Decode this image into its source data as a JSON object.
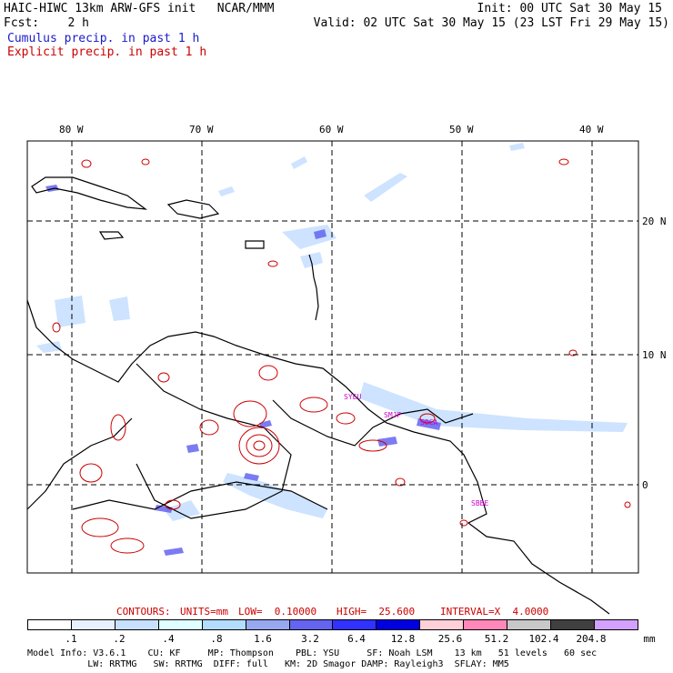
{
  "header": {
    "model_title": "HAIC-HIWC 13km ARW-GFS init   NCAR/MMM",
    "init": "Init: 00 UTC Sat 30 May 15",
    "fcst": "Fcst:    2 h",
    "valid": "Valid: 02 UTC Sat 30 May 15 (23 LST Fri 29 May 15)",
    "cumulus_label": "Cumulus precip. in past 1 h",
    "explicit_label": "Explicit precip. in past 1 h"
  },
  "colors": {
    "cumulus": "#1a1acc",
    "explicit": "#cc0000",
    "coast": "#000000",
    "grid": "#000000",
    "stations": "#cc00cc"
  },
  "map": {
    "lon_labels": [
      "80 W",
      "70 W",
      "60 W",
      "50 W",
      "40 W"
    ],
    "lat_labels": [
      "20 N",
      "10 N",
      "0"
    ],
    "stations": [
      "SYEU",
      "SMJP",
      "SOCA",
      "SBBE"
    ]
  },
  "contours_info": {
    "contours": "CONTOURS:",
    "units": "UNITS=mm",
    "low": "LOW=  0.10000",
    "high": "HIGH=  25.600",
    "interval": "INTERVAL=X  4.0000"
  },
  "legend": {
    "labels": [
      ".1",
      ".2",
      ".4",
      ".8",
      "1.6",
      "3.2",
      "6.4",
      "12.8",
      "25.6",
      "51.2",
      "102.4",
      "204.8"
    ],
    "unit": "mm",
    "colors": [
      "#ffffff",
      "#e6f0ff",
      "#c8e0ff",
      "#e0ffff",
      "#b4dcff",
      "#98a8f0",
      "#6464f0",
      "#3232ff",
      "#0000e0",
      "#ffd0d8",
      "#ff88b8",
      "#c8c8c8",
      "#404040",
      "#d4a0ff"
    ]
  },
  "footer": {
    "line1": "Model Info: V3.6.1    CU: KF     MP: Thompson    PBL: YSU     SF: Noah LSM    13 km   51 levels   60 sec",
    "line2": "           LW: RRTMG   SW: RRTMG  DIFF: full   KM: 2D Smagor DAMP: Rayleigh3  SFLAY: MM5"
  }
}
